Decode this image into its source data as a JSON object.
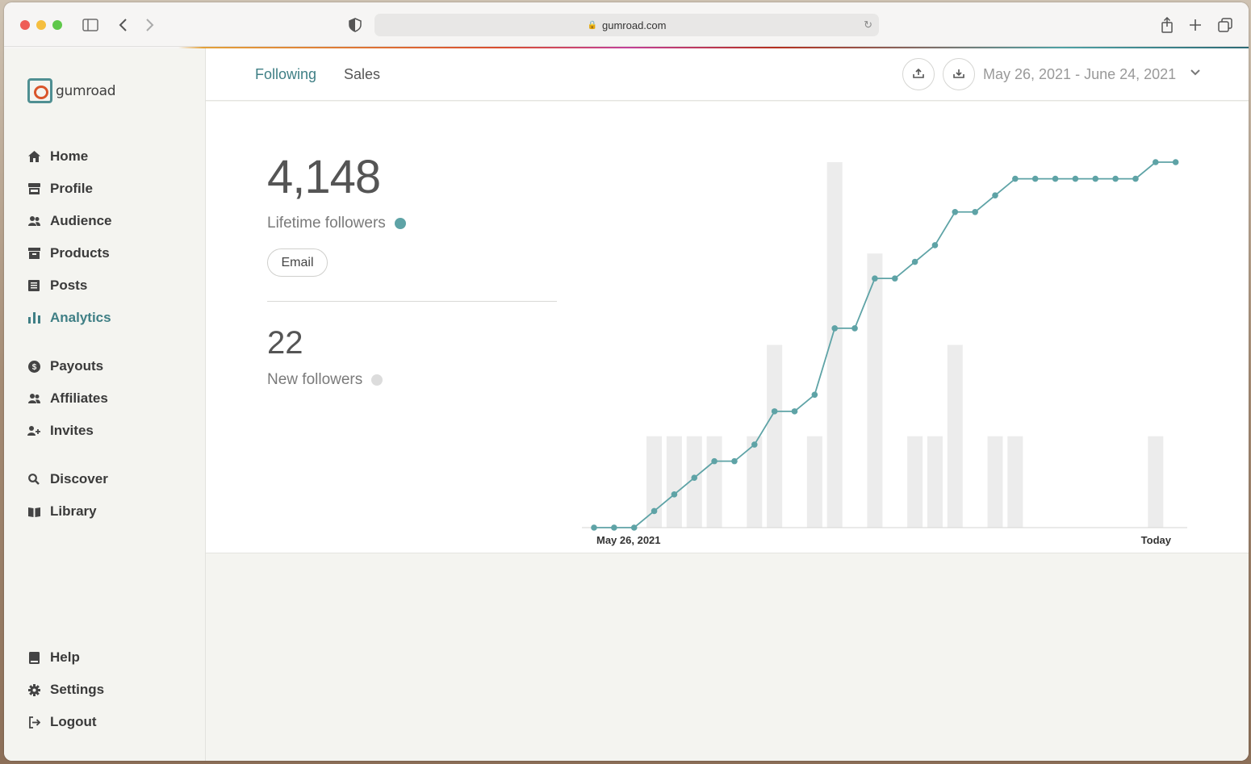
{
  "browser": {
    "url": "gumroad.com"
  },
  "brand": {
    "name": "gumroad",
    "accent": "#3f7f85",
    "logo_orange": "#d9542a"
  },
  "sidebar": {
    "items": [
      {
        "label": "Home",
        "icon": "home-icon"
      },
      {
        "label": "Profile",
        "icon": "store-icon"
      },
      {
        "label": "Audience",
        "icon": "users-icon"
      },
      {
        "label": "Products",
        "icon": "archive-icon"
      },
      {
        "label": "Posts",
        "icon": "newspaper-icon"
      },
      {
        "label": "Analytics",
        "icon": "bar-chart-icon",
        "active": true
      },
      {
        "label": "Payouts",
        "icon": "dollar-circle-icon"
      },
      {
        "label": "Affiliates",
        "icon": "users-icon"
      },
      {
        "label": "Invites",
        "icon": "user-plus-icon"
      },
      {
        "label": "Discover",
        "icon": "search-icon"
      },
      {
        "label": "Library",
        "icon": "book-open-icon"
      },
      {
        "label": "Help",
        "icon": "book-icon"
      },
      {
        "label": "Settings",
        "icon": "gear-icon"
      },
      {
        "label": "Logout",
        "icon": "logout-icon"
      }
    ]
  },
  "header": {
    "tabs": [
      {
        "label": "Following",
        "active": true
      },
      {
        "label": "Sales",
        "active": false
      }
    ],
    "export_icon": "upload-icon",
    "download_icon": "download-icon",
    "date_range": "May 26, 2021 - June 24, 2021"
  },
  "stats": {
    "lifetime_value": "4,148",
    "lifetime_label": "Lifetime followers",
    "lifetime_color": "#5ea3a6",
    "email_label": "Email",
    "new_value": "22",
    "new_label": "New followers",
    "new_color": "#dcdcdc"
  },
  "chart_data": {
    "type": "bar+line",
    "x_start_label": "May 26, 2021",
    "x_end_label": "Today",
    "days": 30,
    "series": [
      {
        "name": "New followers",
        "type": "bar",
        "color": "#ececec",
        "values": [
          0,
          0,
          0,
          1,
          1,
          1,
          1,
          0,
          1,
          2,
          0,
          1,
          4,
          0,
          3,
          0,
          1,
          1,
          2,
          0,
          1,
          1,
          0,
          0,
          0,
          0,
          0,
          0,
          1,
          0
        ]
      },
      {
        "name": "Lifetime followers",
        "type": "line",
        "color": "#5ea3a6",
        "values": [
          4126,
          4126,
          4126,
          4127,
          4128,
          4129,
          4130,
          4130,
          4131,
          4133,
          4133,
          4134,
          4138,
          4138,
          4141,
          4141,
          4142,
          4143,
          4145,
          4145,
          4146,
          4147,
          4147,
          4147,
          4147,
          4147,
          4147,
          4147,
          4148,
          4148
        ]
      }
    ]
  }
}
